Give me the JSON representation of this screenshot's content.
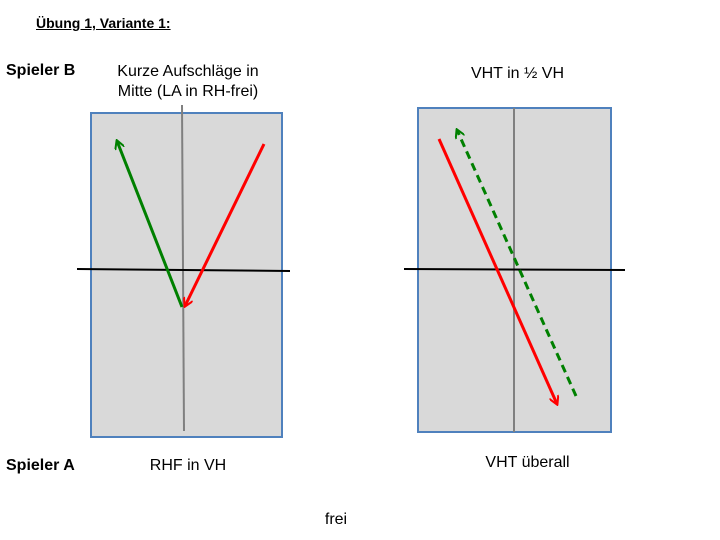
{
  "title": "Übung 1, Variante 1:",
  "player_top": "Spieler B",
  "player_bottom": "Spieler A",
  "left_court": {
    "top_label_line1": "Kurze Aufschläge in",
    "top_label_line2": "Mitte (LA in RH-frei)",
    "bottom_label": "RHF in VH"
  },
  "right_court": {
    "top_label": "VHT in ½ VH",
    "bottom_label": "VHT überall"
  },
  "footer": "frei",
  "colors": {
    "court_fill": "#d9d9d9",
    "court_border": "#4f81bd",
    "center_line": "#808080",
    "net": "#000000",
    "arrow_green": "#008000",
    "arrow_red": "#ff0000"
  }
}
